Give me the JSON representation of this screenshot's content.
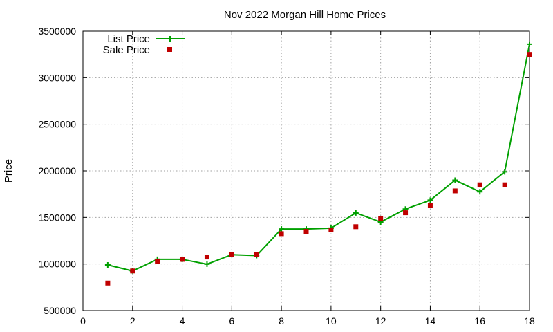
{
  "chart_data": {
    "type": "line",
    "title": "Nov 2022 Morgan Hill Home Prices",
    "xlabel": "",
    "ylabel": "Price",
    "xlim": [
      0,
      18
    ],
    "ylim": [
      500000,
      3500000
    ],
    "xticks": [
      0,
      2,
      4,
      6,
      8,
      10,
      12,
      14,
      16,
      18
    ],
    "yticks": [
      500000,
      1000000,
      1500000,
      2000000,
      2500000,
      3000000,
      3500000
    ],
    "grid": true,
    "legend_position": "top-left",
    "series": [
      {
        "name": "List Price",
        "style": "line-plus",
        "color": "#00a000",
        "x": [
          1,
          2,
          3,
          4,
          5,
          6,
          7,
          8,
          9,
          10,
          11,
          12,
          13,
          14,
          15,
          16,
          17,
          18
        ],
        "y": [
          990000,
          925000,
          1050000,
          1050000,
          998000,
          1100000,
          1090000,
          1375000,
          1375000,
          1385000,
          1548000,
          1450000,
          1590000,
          1685000,
          1900000,
          1775000,
          1990000,
          3360000
        ]
      },
      {
        "name": "Sale Price",
        "style": "square",
        "color": "#c00000",
        "x": [
          1,
          2,
          3,
          4,
          5,
          6,
          7,
          8,
          9,
          10,
          11,
          12,
          13,
          14,
          15,
          16,
          17,
          18
        ],
        "y": [
          795000,
          925000,
          1025000,
          1050000,
          1075000,
          1100000,
          1100000,
          1325000,
          1350000,
          1365000,
          1400000,
          1490000,
          1550000,
          1630000,
          1785000,
          1850000,
          1850000,
          3250000
        ]
      }
    ]
  }
}
